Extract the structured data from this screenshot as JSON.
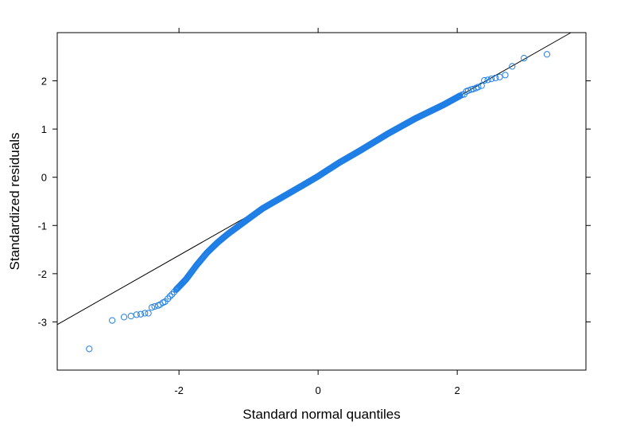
{
  "chart_data": {
    "type": "scatter",
    "title": "",
    "xlabel": "Standard normal quantiles",
    "ylabel": "Standardized residuals",
    "xlim": [
      -3.75,
      3.85
    ],
    "ylim": [
      -4.0,
      3.0
    ],
    "x_ticks": [
      -2,
      0,
      2
    ],
    "x_tick_labels": [
      "-2",
      "0",
      "2"
    ],
    "y_ticks": [
      -3,
      -2,
      -1,
      0,
      1,
      2
    ],
    "y_tick_labels": [
      "-3",
      "-2",
      "-1",
      "0",
      "1",
      "2"
    ],
    "grid": false,
    "legend": "none",
    "colors": {
      "points": "#1f7fe6",
      "reference_line": "#000000",
      "frame": "#000000"
    },
    "reference_line": {
      "intercept": 0.02,
      "slope": 0.82
    },
    "n_points": 500,
    "tail_points": {
      "low": [
        [
          -3.29,
          -3.56
        ],
        [
          -2.96,
          -2.97
        ],
        [
          -2.79,
          -2.9
        ],
        [
          -2.69,
          -2.88
        ],
        [
          -2.61,
          -2.85
        ],
        [
          -2.55,
          -2.84
        ],
        [
          -2.49,
          -2.82
        ],
        [
          -2.44,
          -2.82
        ],
        [
          -2.39,
          -2.7
        ],
        [
          -2.35,
          -2.68
        ],
        [
          -2.3,
          -2.66
        ],
        [
          -2.27,
          -2.64
        ],
        [
          -2.23,
          -2.6
        ],
        [
          -2.2,
          -2.58
        ],
        [
          -2.16,
          -2.52
        ],
        [
          -2.13,
          -2.47
        ],
        [
          -2.1,
          -2.43
        ],
        [
          -2.07,
          -2.38
        ],
        [
          -2.04,
          -2.33
        ]
      ],
      "high": [
        [
          3.29,
          2.55
        ],
        [
          2.96,
          2.47
        ],
        [
          2.79,
          2.3
        ],
        [
          2.69,
          2.12
        ],
        [
          2.61,
          2.08
        ],
        [
          2.55,
          2.06
        ],
        [
          2.49,
          2.04
        ],
        [
          2.44,
          2.02
        ],
        [
          2.39,
          2.01
        ],
        [
          2.35,
          1.9
        ],
        [
          2.3,
          1.87
        ],
        [
          2.27,
          1.85
        ],
        [
          2.23,
          1.83
        ],
        [
          2.2,
          1.82
        ],
        [
          2.16,
          1.8
        ],
        [
          2.13,
          1.78
        ],
        [
          2.1,
          1.72
        ],
        [
          2.07,
          1.71
        ],
        [
          2.04,
          1.69
        ]
      ]
    },
    "body_profile": {
      "knots_x": [
        -2.04,
        -1.9,
        -1.75,
        -1.6,
        -1.45,
        -1.3,
        -1.15,
        -1.0,
        -0.8,
        -0.5,
        -0.2,
        0.0,
        0.3,
        0.6,
        1.0,
        1.4,
        1.8,
        2.04
      ],
      "knots_y": [
        -2.33,
        -2.12,
        -1.83,
        -1.57,
        -1.36,
        -1.18,
        -1.02,
        -0.86,
        -0.65,
        -0.4,
        -0.15,
        0.02,
        0.3,
        0.55,
        0.9,
        1.22,
        1.5,
        1.69
      ]
    }
  }
}
